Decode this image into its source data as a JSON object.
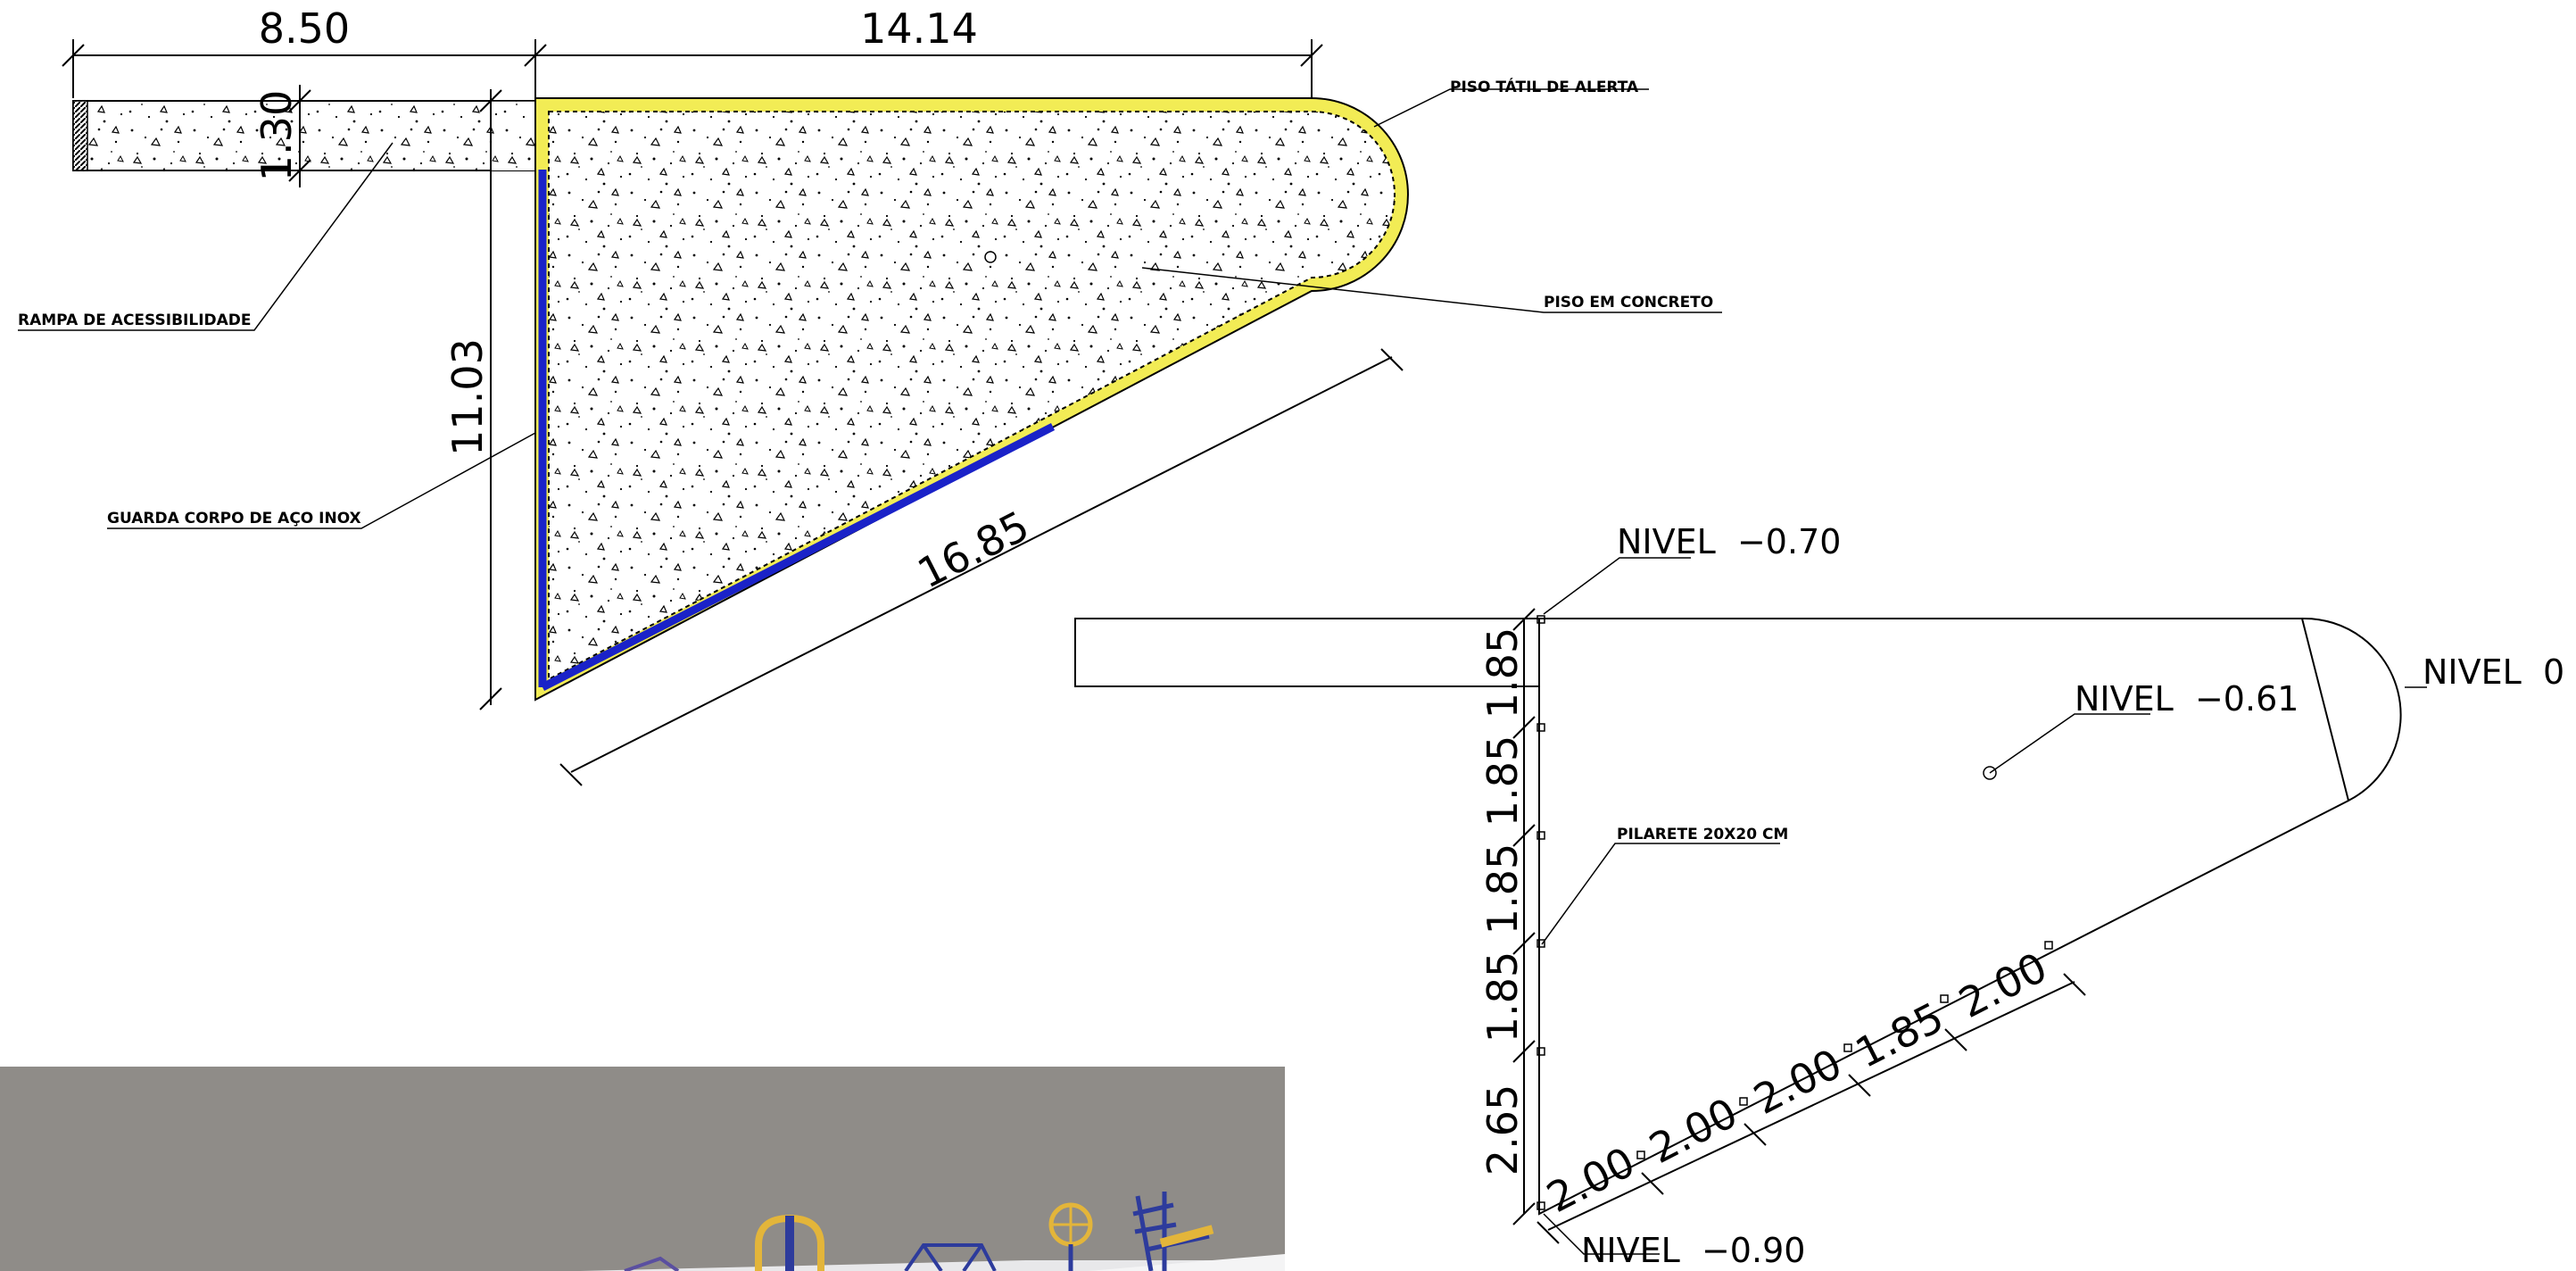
{
  "colors": {
    "tactile_yellow": "#f2ec55",
    "railing_blue": "#1a22c8",
    "render_background": "#8f8c88",
    "playground_yellow": "#e3b53a",
    "playground_blue": "#2d3b9c"
  },
  "plan": {
    "dimensions": {
      "ramp_length": "8.50",
      "top_edge": "14.14",
      "ramp_width": "1.30",
      "left_edge": "11.03",
      "diagonal": "16.85"
    },
    "notes": {
      "tactile_floor": "PISO TÁTIL DE ALERTA",
      "concrete_floor": "PISO EM CONCRETO",
      "access_ramp": "RAMPA DE ACESSIBILIDADE",
      "railing": "GUARDA CORPO DE AÇO INOX"
    }
  },
  "levels_plan": {
    "levels": {
      "top": "NIVEL  −0.70",
      "center": "NIVEL  −0.61",
      "right": "NIVEL  0",
      "bottom": "NIVEL  −0.90"
    },
    "post_note": "PILARETE 20X20 CM",
    "vertical_spacings": [
      "1.85",
      "1.85",
      "1.85",
      "1.85",
      "2.65"
    ],
    "diagonal_spacings": [
      "2.00",
      "2.00",
      "2.00",
      "1.85",
      "2.00"
    ]
  }
}
